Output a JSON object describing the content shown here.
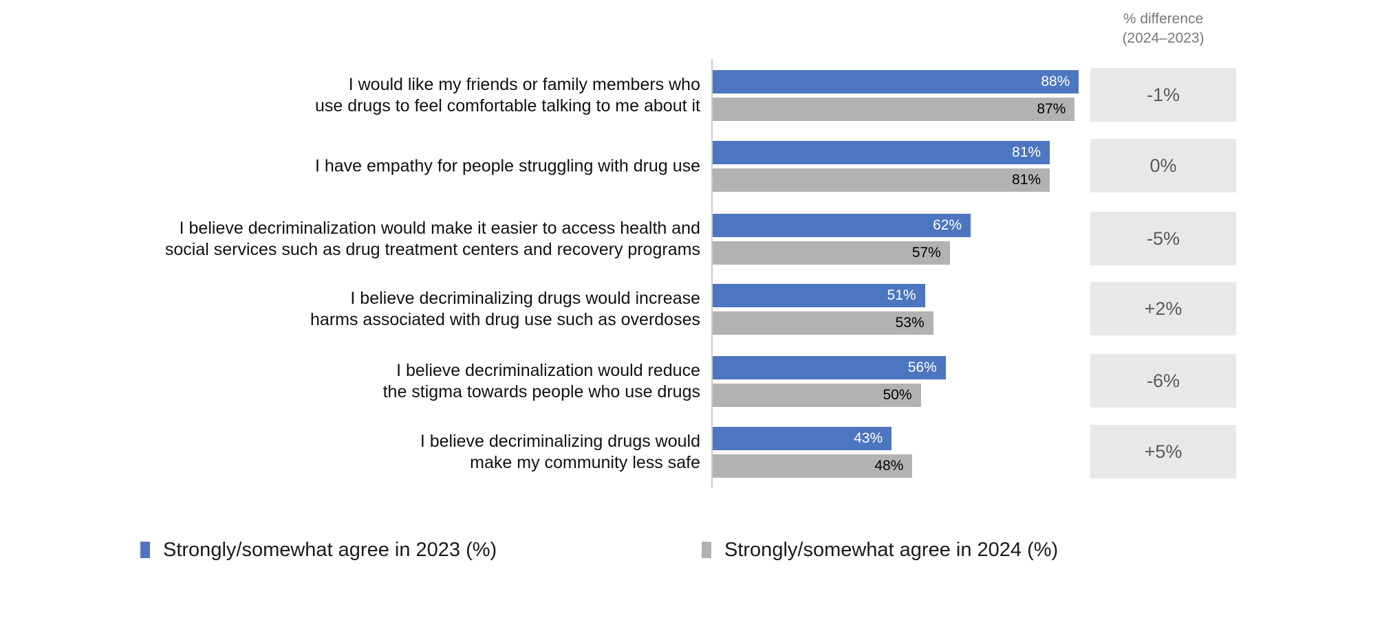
{
  "chart_data": {
    "type": "bar",
    "orientation": "horizontal",
    "title": "",
    "xlabel": "",
    "ylabel": "",
    "xlim": [
      0,
      100
    ],
    "grid": false,
    "legend_position": "bottom",
    "value_suffix": "%",
    "categories": [
      "I would like my friends or family members who use drugs to feel comfortable talking to me about it",
      "I have empathy for people struggling with drug use",
      "I believe decriminalization would make it easier to access health and social services such as drug treatment centers and recovery programs",
      "I believe decriminalizing drugs would increase harms associated with drug use such as overdoses",
      "I believe decriminalization would reduce the stigma towards people who use drugs",
      "I believe decriminalizing drugs would make my community less safe"
    ],
    "category_lines": [
      [
        "I would like my friends or family members who",
        "use drugs to feel comfortable talking to me about it"
      ],
      [
        "I have empathy for people struggling with drug use"
      ],
      [
        "I believe decriminalization would make it easier to access health and",
        "social services such as drug treatment centers and recovery programs"
      ],
      [
        "I believe decriminalizing drugs would increase",
        "harms associated with drug use such as overdoses"
      ],
      [
        "I believe decriminalization would reduce",
        "the stigma towards people who use drugs"
      ],
      [
        "I believe decriminalizing drugs would",
        "make my community less safe"
      ]
    ],
    "series": [
      {
        "name": "Strongly/somewhat agree in 2023 (%)",
        "color": "#4d76c0",
        "label_color": "#ffffff",
        "values": [
          88,
          81,
          62,
          51,
          56,
          43
        ]
      },
      {
        "name": "Strongly/somewhat agree in 2024 (%)",
        "color": "#b3b2b1",
        "label_color": "#000000",
        "values": [
          87,
          81,
          57,
          53,
          50,
          48
        ]
      }
    ],
    "diff_column": {
      "header_lines": [
        "% difference",
        "(2024–2023)"
      ],
      "values": [
        "-1%",
        "0%",
        "-5%",
        "+2%",
        "-6%",
        "+5%"
      ]
    }
  },
  "colors": {
    "background": "#ffffff",
    "bar_2023": "#4d76c0",
    "bar_2024": "#b3b2b1",
    "diff_box_bg": "#e8e8e7",
    "diff_text": "#595959",
    "diff_header_text": "#7b7876",
    "axis_line": "#cbcbcb"
  }
}
